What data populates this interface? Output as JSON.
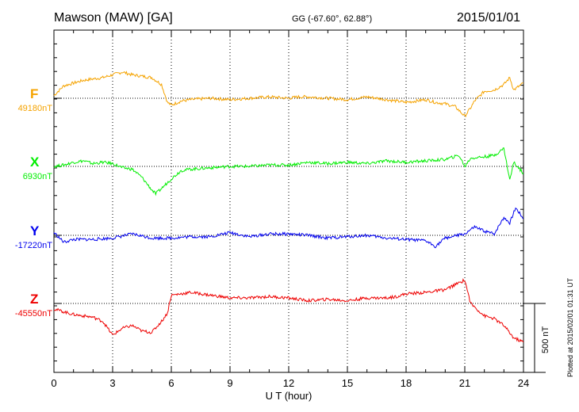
{
  "header": {
    "station": "Mawson (MAW)  [GA]",
    "coords": "GG (-67.60°,  62.88°)",
    "date": "2015/01/01"
  },
  "footer": {
    "plotted": "Plotted at 2015/02/01 01:31  UT",
    "scale_label": "500 nT"
  },
  "chart_data": {
    "type": "line",
    "title": "Mawson (MAW)  [GA]",
    "xlabel": "U T (hour)",
    "ylabel": "",
    "xlim": [
      0,
      24
    ],
    "x_ticks": [
      0,
      3,
      6,
      9,
      12,
      15,
      18,
      21,
      24
    ],
    "x_tick_labels": [
      "0",
      "3",
      "6",
      "9",
      "12",
      "15",
      "18",
      "21",
      "24"
    ],
    "grid": "dotted vertical at 3-hour steps, dotted baseline per trace",
    "scale_bar_nT": 500,
    "series": [
      {
        "name": "F",
        "baseline_label": "49180nT",
        "baseline_nT": 49180,
        "color": "#f5a300",
        "x": [
          0,
          0.5,
          1,
          1.5,
          2,
          2.5,
          3,
          3.5,
          4,
          4.5,
          5,
          5.5,
          5.8,
          6,
          6.5,
          7,
          8,
          9,
          10,
          11,
          12,
          12.5,
          13,
          14,
          15,
          16,
          17,
          18,
          19,
          19.5,
          20,
          20.5,
          21,
          21.3,
          21.5,
          22,
          22.5,
          23,
          23.3,
          23.5,
          24
        ],
        "values": [
          20,
          90,
          110,
          130,
          140,
          150,
          170,
          190,
          170,
          160,
          150,
          100,
          -30,
          -50,
          -20,
          -10,
          0,
          -10,
          0,
          10,
          0,
          10,
          10,
          0,
          -10,
          10,
          -10,
          -30,
          -10,
          -30,
          -40,
          -60,
          -130,
          -70,
          -20,
          50,
          60,
          100,
          150,
          60,
          110
        ]
      },
      {
        "name": "X",
        "baseline_label": "6930nT",
        "baseline_nT": 6930,
        "color": "#00ee00",
        "x": [
          0,
          0.5,
          1,
          1.5,
          2,
          2.5,
          3,
          3.5,
          4,
          4.5,
          5,
          5.2,
          5.5,
          6,
          6.5,
          7,
          8,
          9,
          10,
          11,
          12,
          12.5,
          13,
          14,
          15,
          16,
          17,
          18,
          19,
          20,
          20.7,
          21,
          21.3,
          22,
          22.5,
          23,
          23.3,
          23.5,
          24
        ],
        "values": [
          0,
          10,
          30,
          40,
          20,
          30,
          20,
          -10,
          -20,
          -80,
          -170,
          -200,
          -160,
          -90,
          -30,
          -20,
          -10,
          0,
          0,
          10,
          10,
          20,
          30,
          20,
          30,
          20,
          40,
          30,
          40,
          50,
          80,
          0,
          60,
          70,
          80,
          130,
          -100,
          30,
          -50
        ]
      },
      {
        "name": "Y",
        "baseline_label": "-17220nT",
        "baseline_nT": -17220,
        "color": "#0000ee",
        "x": [
          0,
          0.5,
          1,
          2,
          3,
          4,
          5,
          6,
          7,
          8,
          9,
          10,
          11,
          12,
          13,
          14,
          15,
          16,
          17,
          18,
          19,
          19.5,
          20,
          21,
          21.5,
          22,
          22.5,
          23,
          23.3,
          23.6,
          24
        ],
        "values": [
          20,
          -50,
          -30,
          -30,
          -20,
          10,
          -20,
          -20,
          -10,
          -10,
          20,
          -10,
          10,
          10,
          0,
          -20,
          -10,
          0,
          -20,
          -30,
          -40,
          -80,
          -20,
          10,
          60,
          30,
          10,
          130,
          90,
          200,
          120
        ]
      },
      {
        "name": "Z",
        "baseline_label": "-45550nT",
        "baseline_nT": -45550,
        "color": "#ee0000",
        "x": [
          0,
          0.5,
          1,
          2,
          2.5,
          3,
          3.5,
          4,
          4.5,
          5,
          5.5,
          5.8,
          6,
          7,
          8,
          9,
          10,
          11,
          12,
          13,
          14,
          15,
          16,
          17,
          17.5,
          18,
          19,
          20,
          21,
          21.3,
          22,
          22.5,
          23,
          23.5,
          24
        ],
        "values": [
          -40,
          -60,
          -80,
          -100,
          -130,
          -230,
          -180,
          -160,
          -200,
          -210,
          -130,
          -70,
          60,
          80,
          60,
          40,
          40,
          50,
          40,
          20,
          30,
          20,
          40,
          40,
          50,
          70,
          80,
          100,
          170,
          0,
          -90,
          -110,
          -160,
          -250,
          -280
        ]
      }
    ]
  }
}
